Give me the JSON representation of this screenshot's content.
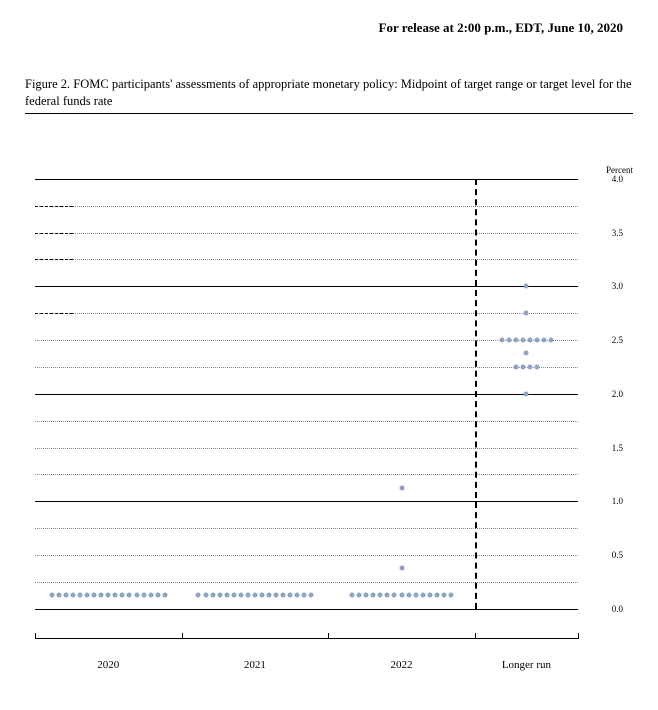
{
  "release": "For release at 2:00 p.m., EDT, June 10, 2020",
  "title": "Figure 2.  FOMC participants' assessments of appropriate monetary policy:  Midpoint of target range or target level for the federal funds rate",
  "chart": {
    "type": "dotplot",
    "ylabel": "Percent",
    "ylim": [
      0,
      4.0
    ],
    "ytick_step_major": 1.0,
    "ytick_step_minor": 0.25,
    "ylabel_step": 0.5,
    "left_stub_rows": [
      3.75,
      3.5,
      3.25,
      2.75
    ],
    "background_color": "#ffffff",
    "major_grid_color": "#000000",
    "minor_grid_color": "#888888",
    "dot_color": "#8fa3c2",
    "dot_radius": 2.5,
    "dash_gap": "#000000",
    "categories": [
      "2020",
      "2021",
      "2022",
      "Longer run"
    ],
    "category_widths": [
      0.27,
      0.27,
      0.27,
      0.19
    ],
    "divider_after_index": 2,
    "data": {
      "2020": [
        {
          "rate": 0.125,
          "count": 17
        }
      ],
      "2021": [
        {
          "rate": 0.125,
          "count": 17
        }
      ],
      "2022": [
        {
          "rate": 0.125,
          "count": 15
        },
        {
          "rate": 0.375,
          "count": 1
        },
        {
          "rate": 1.125,
          "count": 1
        }
      ],
      "Longer run": [
        {
          "rate": 2.0,
          "count": 1
        },
        {
          "rate": 2.25,
          "count": 4
        },
        {
          "rate": 2.375,
          "count": 1
        },
        {
          "rate": 2.5,
          "count": 8
        },
        {
          "rate": 2.75,
          "count": 1
        },
        {
          "rate": 3.0,
          "count": 1
        }
      ]
    },
    "yticks_labeled": [
      "0.0",
      "0.5",
      "1.0",
      "1.5",
      "2.0",
      "2.5",
      "3.0",
      "3.5",
      "4.0"
    ]
  }
}
